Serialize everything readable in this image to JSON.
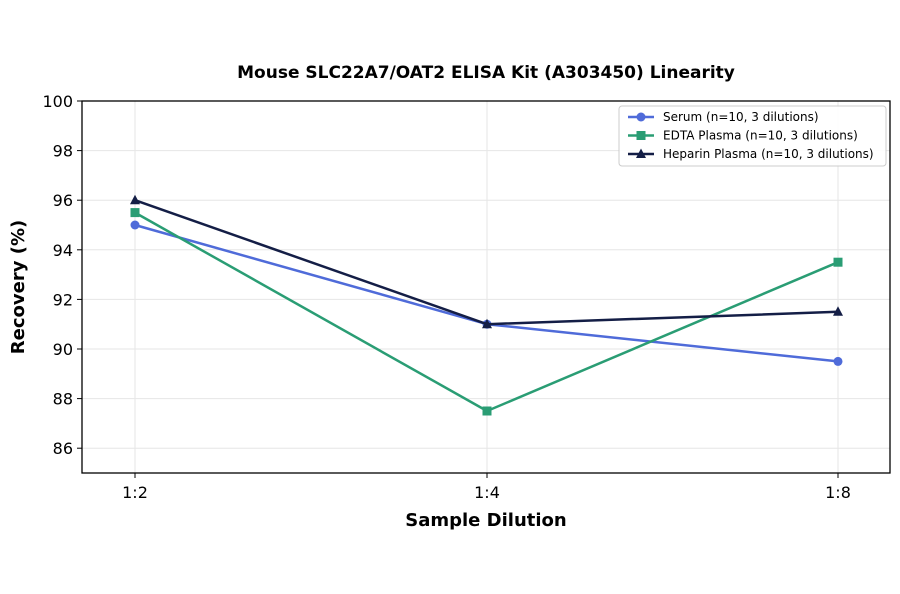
{
  "chart_data": {
    "type": "line",
    "title": "Mouse SLC22A7/OAT2 ELISA Kit (A303450) Linearity",
    "xlabel": "Sample Dilution",
    "ylabel": "Recovery (%)",
    "categories": [
      "1:2",
      "1:4",
      "1:8"
    ],
    "ylim": [
      85,
      100
    ],
    "yticks": [
      86,
      88,
      90,
      92,
      94,
      96,
      98,
      100
    ],
    "grid": true,
    "legend_position": "top-right",
    "series": [
      {
        "name": "Serum (n=10, 3 dilutions)",
        "values": [
          95.0,
          91.0,
          89.5
        ],
        "color": "#4f6bd9",
        "marker": "circle"
      },
      {
        "name": "EDTA Plasma (n=10, 3 dilutions)",
        "values": [
          95.5,
          87.5,
          93.5
        ],
        "color": "#2a9d74",
        "marker": "square"
      },
      {
        "name": "Heparin Plasma (n=10, 3 dilutions)",
        "values": [
          96.0,
          91.0,
          91.5
        ],
        "color": "#141e46",
        "marker": "triangle"
      }
    ]
  }
}
